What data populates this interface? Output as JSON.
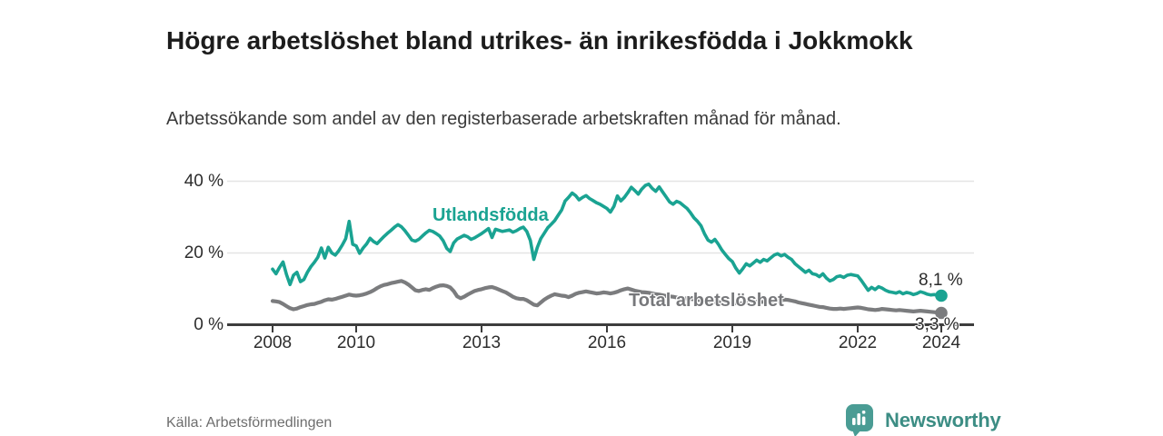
{
  "chart_data": {
    "type": "line",
    "title": "Högre arbetslöshet bland utrikes- än inrikesfödda i Jokkmokk",
    "subtitle": "Arbetssökande som andel av den registerbaserade arbetskraften månad för månad.",
    "source": "Källa: Arbetsförmedlingen",
    "unit": "%",
    "frequency": "monthly",
    "start": "2008-01",
    "end": "2024-01",
    "grid": "horizontal-only",
    "x_axis": {
      "start_year": 2008,
      "ticks": [
        {
          "label": "2008",
          "year": 2008
        },
        {
          "label": "2010",
          "year": 2010
        },
        {
          "label": "2013",
          "year": 2013
        },
        {
          "label": "2016",
          "year": 2016
        },
        {
          "label": "2019",
          "year": 2019
        },
        {
          "label": "2022",
          "year": 2022
        },
        {
          "label": "2024",
          "year": 2024
        }
      ]
    },
    "y_axis": {
      "range": [
        0,
        42
      ],
      "ticks": [
        {
          "label": "0 %",
          "value": 0
        },
        {
          "label": "20 %",
          "value": 20
        },
        {
          "label": "40 %",
          "value": 40
        }
      ]
    },
    "series": [
      {
        "name": "Utlandsfödda",
        "color": "#1aa392",
        "end_label": "8,1 %",
        "end_value": 8.1,
        "values": [
          15.5,
          14.2,
          16.0,
          17.5,
          14.0,
          11.2,
          13.8,
          14.6,
          12.0,
          12.6,
          14.6,
          16.2,
          17.4,
          18.8,
          21.4,
          18.6,
          21.6,
          20.0,
          19.4,
          20.6,
          22.2,
          24.0,
          28.8,
          22.4,
          22.0,
          19.9,
          21.4,
          22.5,
          24.1,
          23.2,
          22.6,
          23.6,
          24.6,
          25.5,
          26.3,
          27.2,
          27.9,
          27.3,
          26.2,
          24.9,
          23.6,
          23.3,
          23.8,
          24.7,
          25.6,
          26.3,
          26.0,
          25.4,
          24.7,
          23.4,
          21.3,
          20.4,
          22.8,
          23.9,
          24.4,
          24.9,
          24.5,
          23.8,
          24.2,
          24.8,
          25.4,
          26.1,
          26.8,
          24.3,
          26.6,
          26.3,
          26.0,
          26.2,
          26.4,
          25.8,
          26.2,
          26.8,
          27.2,
          26.0,
          23.5,
          18.2,
          21.5,
          24.0,
          25.5,
          27.0,
          28.0,
          29.0,
          30.5,
          32.0,
          34.5,
          35.5,
          36.7,
          36.0,
          34.8,
          35.5,
          36.0,
          35.2,
          34.6,
          34.0,
          33.6,
          33.0,
          32.4,
          31.4,
          33.0,
          35.9,
          34.5,
          35.5,
          36.8,
          38.3,
          37.4,
          36.4,
          37.8,
          38.8,
          39.2,
          38.0,
          37.2,
          38.4,
          37.0,
          35.6,
          34.2,
          33.6,
          34.4,
          34.0,
          33.2,
          32.4,
          31.2,
          29.8,
          28.8,
          27.6,
          25.4,
          23.6,
          23.0,
          23.8,
          22.4,
          20.8,
          19.6,
          18.4,
          17.6,
          15.8,
          14.4,
          15.6,
          17.0,
          16.4,
          17.2,
          18.0,
          17.4,
          18.2,
          17.8,
          18.6,
          19.4,
          19.8,
          19.2,
          19.6,
          18.8,
          18.2,
          17.0,
          16.2,
          15.4,
          14.6,
          15.2,
          14.2,
          14.0,
          13.4,
          14.2,
          13.0,
          12.2,
          12.6,
          13.4,
          13.6,
          13.2,
          13.8,
          14.0,
          13.8,
          13.6,
          12.4,
          11.0,
          9.6,
          10.4,
          9.8,
          10.6,
          10.2,
          9.6,
          9.2,
          9.0,
          8.8,
          9.2,
          8.6,
          9.0,
          8.8,
          8.4,
          8.7,
          9.2,
          8.9,
          8.5,
          8.3,
          8.4,
          8.2,
          8.1
        ]
      },
      {
        "name": "Total arbetslöshet",
        "color": "#7b7c7e",
        "end_label": "3,3 %",
        "end_value": 3.3,
        "values": [
          6.6,
          6.5,
          6.3,
          5.8,
          5.2,
          4.6,
          4.3,
          4.5,
          4.9,
          5.2,
          5.5,
          5.7,
          5.8,
          6.1,
          6.4,
          6.8,
          7.1,
          7.0,
          7.2,
          7.5,
          7.8,
          8.1,
          8.4,
          8.2,
          8.1,
          8.2,
          8.4,
          8.7,
          9.1,
          9.6,
          10.2,
          10.7,
          11.1,
          11.3,
          11.6,
          11.8,
          12.0,
          12.2,
          11.8,
          11.2,
          10.4,
          9.6,
          9.4,
          9.7,
          9.9,
          9.7,
          10.2,
          10.6,
          10.9,
          11.0,
          10.8,
          10.4,
          9.4,
          7.9,
          7.4,
          7.8,
          8.4,
          8.9,
          9.4,
          9.7,
          9.9,
          10.2,
          10.4,
          10.5,
          10.2,
          9.8,
          9.4,
          9.0,
          8.4,
          7.8,
          7.4,
          7.2,
          7.2,
          6.8,
          6.2,
          5.6,
          5.4,
          6.2,
          7.0,
          7.6,
          8.1,
          8.5,
          8.3,
          8.1,
          8.0,
          7.7,
          8.1,
          8.6,
          8.9,
          9.1,
          9.3,
          9.1,
          8.9,
          8.7,
          8.8,
          9.0,
          8.9,
          8.7,
          8.9,
          9.2,
          9.6,
          9.9,
          10.1,
          9.8,
          9.5,
          9.3,
          9.1,
          9.0,
          8.9,
          8.7,
          8.5,
          8.4,
          8.2,
          8.0,
          7.9,
          7.8,
          7.6,
          7.5,
          7.4,
          7.3,
          7.2,
          7.1,
          7.0,
          6.8,
          6.6,
          6.4,
          6.3,
          6.4,
          6.3,
          6.2,
          6.1,
          6.0,
          6.1,
          6.0,
          5.9,
          6.0,
          6.2,
          6.1,
          6.3,
          6.4,
          6.3,
          6.4,
          6.3,
          6.4,
          6.5,
          6.6,
          6.8,
          7.0,
          6.9,
          6.7,
          6.5,
          6.2,
          6.0,
          5.8,
          5.6,
          5.4,
          5.2,
          5.0,
          4.9,
          4.7,
          4.5,
          4.4,
          4.4,
          4.5,
          4.4,
          4.5,
          4.6,
          4.7,
          4.8,
          4.7,
          4.5,
          4.3,
          4.2,
          4.1,
          4.2,
          4.4,
          4.3,
          4.2,
          4.1,
          4.0,
          4.1,
          4.0,
          3.9,
          3.8,
          3.7,
          3.8,
          3.9,
          3.8,
          3.7,
          3.6,
          3.5,
          3.4,
          3.3
        ]
      }
    ]
  },
  "footer": {
    "brand": "Newsworthy"
  },
  "colors": {
    "accent_teal": "#1aa392",
    "line_gray": "#7b7c7e",
    "axis": "#3d3d3d",
    "gridline": "#e4e4e4",
    "brand_teal": "#3c8d84"
  }
}
